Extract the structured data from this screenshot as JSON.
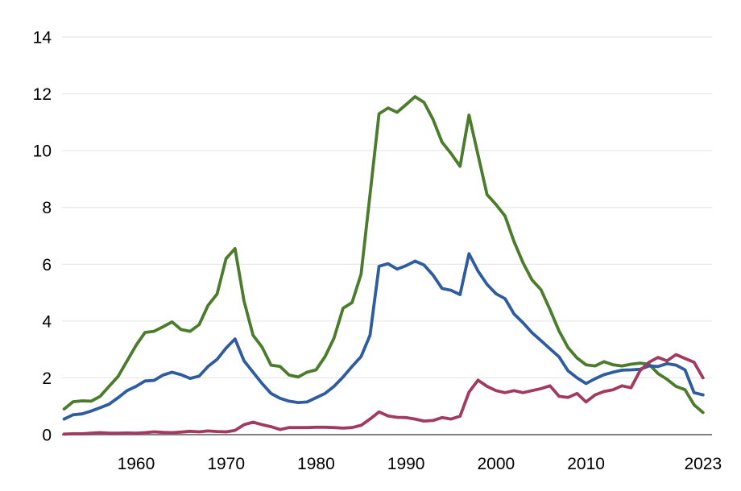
{
  "chart_data": {
    "type": "line",
    "title": "",
    "xlabel": "",
    "ylabel": "",
    "x": [
      1952,
      1953,
      1954,
      1955,
      1956,
      1957,
      1958,
      1959,
      1960,
      1961,
      1962,
      1963,
      1964,
      1965,
      1966,
      1967,
      1968,
      1969,
      1970,
      1971,
      1972,
      1973,
      1974,
      1975,
      1976,
      1977,
      1978,
      1979,
      1980,
      1981,
      1982,
      1983,
      1984,
      1985,
      1986,
      1987,
      1988,
      1989,
      1990,
      1991,
      1992,
      1993,
      1994,
      1995,
      1996,
      1997,
      1998,
      1999,
      2000,
      2001,
      2002,
      2003,
      2004,
      2005,
      2006,
      2007,
      2008,
      2009,
      2010,
      2011,
      2012,
      2013,
      2014,
      2015,
      2016,
      2017,
      2018,
      2019,
      2020,
      2021,
      2022,
      2023
    ],
    "series": [
      {
        "name": "green-series",
        "color": "#4a7c2b",
        "values": [
          0.9,
          1.16,
          1.19,
          1.18,
          1.35,
          1.7,
          2.05,
          2.6,
          3.15,
          3.6,
          3.64,
          3.8,
          3.97,
          3.7,
          3.64,
          3.87,
          4.55,
          4.95,
          6.2,
          6.55,
          4.7,
          3.5,
          3.08,
          2.45,
          2.4,
          2.1,
          2.03,
          2.2,
          2.28,
          2.75,
          3.4,
          4.45,
          4.65,
          5.65,
          8.45,
          11.3,
          11.5,
          11.35,
          11.62,
          11.9,
          11.7,
          11.1,
          10.3,
          9.9,
          9.45,
          11.25,
          9.85,
          8.45,
          8.1,
          7.7,
          6.8,
          6.05,
          5.45,
          5.1,
          4.4,
          3.65,
          3.07,
          2.7,
          2.46,
          2.42,
          2.57,
          2.46,
          2.42,
          2.48,
          2.52,
          2.48,
          2.15,
          1.95,
          1.7,
          1.58,
          1.05,
          0.78
        ]
      },
      {
        "name": "blue-series",
        "color": "#2e5c9e",
        "values": [
          0.55,
          0.7,
          0.73,
          0.83,
          0.95,
          1.07,
          1.3,
          1.55,
          1.7,
          1.89,
          1.91,
          2.1,
          2.2,
          2.11,
          1.98,
          2.06,
          2.4,
          2.65,
          3.05,
          3.37,
          2.6,
          2.2,
          1.8,
          1.45,
          1.28,
          1.18,
          1.13,
          1.15,
          1.3,
          1.45,
          1.7,
          2.03,
          2.4,
          2.75,
          3.5,
          5.93,
          6.02,
          5.83,
          5.95,
          6.11,
          5.97,
          5.62,
          5.15,
          5.08,
          4.93,
          6.37,
          5.76,
          5.29,
          4.96,
          4.79,
          4.25,
          3.94,
          3.59,
          3.31,
          3.02,
          2.74,
          2.25,
          2.0,
          1.8,
          1.97,
          2.11,
          2.2,
          2.27,
          2.28,
          2.3,
          2.42,
          2.4,
          2.5,
          2.45,
          2.28,
          1.48,
          1.4
        ]
      },
      {
        "name": "maroon-series",
        "color": "#a23a60",
        "values": [
          0.02,
          0.03,
          0.03,
          0.05,
          0.07,
          0.05,
          0.05,
          0.06,
          0.05,
          0.07,
          0.1,
          0.08,
          0.07,
          0.09,
          0.12,
          0.1,
          0.13,
          0.11,
          0.1,
          0.15,
          0.35,
          0.44,
          0.35,
          0.28,
          0.18,
          0.25,
          0.25,
          0.25,
          0.26,
          0.26,
          0.25,
          0.23,
          0.25,
          0.33,
          0.55,
          0.8,
          0.66,
          0.61,
          0.6,
          0.55,
          0.48,
          0.5,
          0.6,
          0.55,
          0.65,
          1.5,
          1.92,
          1.7,
          1.55,
          1.48,
          1.55,
          1.48,
          1.55,
          1.62,
          1.72,
          1.35,
          1.31,
          1.45,
          1.15,
          1.4,
          1.52,
          1.58,
          1.72,
          1.65,
          2.25,
          2.55,
          2.72,
          2.6,
          2.82,
          2.68,
          2.55,
          2.0
        ]
      }
    ],
    "xticks": [
      1960,
      1970,
      1980,
      1990,
      2000,
      2010,
      2023
    ],
    "yticks": [
      0,
      2,
      4,
      6,
      8,
      10,
      12,
      14
    ],
    "xlim": [
      1951.77,
      2024.0
    ],
    "ylim": [
      0,
      14
    ],
    "grid": "horizontal",
    "legend": "none"
  },
  "layout_colors": {
    "background": "#ffffff",
    "gridline": "#e2e2e2",
    "zero_line": "#808080",
    "tick_label": "#000000"
  }
}
